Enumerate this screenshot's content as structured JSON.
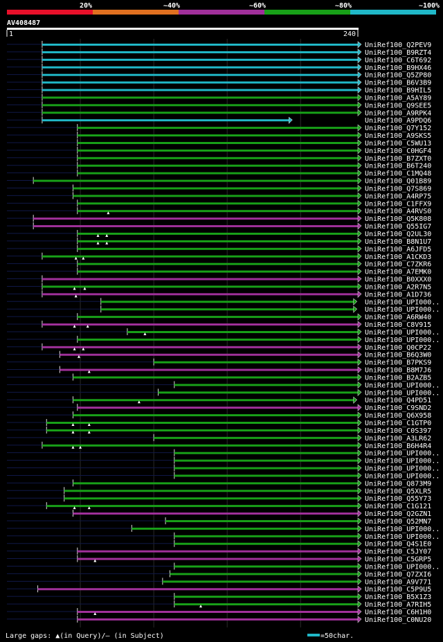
{
  "chart_data": {
    "type": "alignment-overview",
    "query": "AV408487",
    "query_start": "1",
    "query_end": "240",
    "query_length": 240,
    "identity_legend": [
      {
        "label": "20%",
        "color": "#e8102a"
      },
      {
        "label": "~40%",
        "color": "#e07020"
      },
      {
        "label": "~60%",
        "color": "#a0309a"
      },
      {
        "label": "~80%",
        "color": "#18a018"
      },
      {
        "label": "~100%",
        "color": "#20b8c8"
      }
    ],
    "footer": {
      "gaps_label": "Large gaps: ▲(in Query)/– (in Subject)",
      "scale_label": "=50char."
    },
    "hits": [
      {
        "name": "UniRef100_Q2PEV9",
        "start": 25,
        "end": 240,
        "color": "#20b8c8",
        "gaps": []
      },
      {
        "name": "UniRef100_B9RZT4",
        "start": 25,
        "end": 240,
        "color": "#20b8c8",
        "gaps": []
      },
      {
        "name": "UniRef100_C6T692",
        "start": 25,
        "end": 240,
        "color": "#20b8c8",
        "gaps": []
      },
      {
        "name": "UniRef100_B9HX46",
        "start": 25,
        "end": 240,
        "color": "#20b8c8",
        "gaps": []
      },
      {
        "name": "UniRef100_Q5ZP80",
        "start": 25,
        "end": 240,
        "color": "#20b8c8",
        "gaps": []
      },
      {
        "name": "UniRef100_B6V3B9",
        "start": 25,
        "end": 240,
        "color": "#20b8c8",
        "gaps": []
      },
      {
        "name": "UniRef100_B9HIL5",
        "start": 25,
        "end": 240,
        "color": "#20b8c8",
        "gaps": []
      },
      {
        "name": "UniRef100_A5AY89",
        "start": 25,
        "end": 240,
        "color": "#18a018",
        "gaps": []
      },
      {
        "name": "UniRef100_Q9SEE5",
        "start": 25,
        "end": 240,
        "color": "#18a018",
        "gaps": []
      },
      {
        "name": "UniRef100_A9RPK4",
        "start": 25,
        "end": 240,
        "color": "#18a018",
        "gaps": []
      },
      {
        "name": "UniRef100_A9PDQ6",
        "start": 25,
        "end": 193,
        "color": "#20b8c8",
        "gaps": []
      },
      {
        "name": "UniRef100_Q7Y152",
        "start": 49,
        "end": 240,
        "color": "#18a018",
        "gaps": []
      },
      {
        "name": "UniRef100_A9SKS5",
        "start": 49,
        "end": 240,
        "color": "#18a018",
        "gaps": []
      },
      {
        "name": "UniRef100_C5WU13",
        "start": 49,
        "end": 240,
        "color": "#18a018",
        "gaps": []
      },
      {
        "name": "UniRef100_C0HGF4",
        "start": 49,
        "end": 240,
        "color": "#18a018",
        "gaps": []
      },
      {
        "name": "UniRef100_B7ZXT0",
        "start": 49,
        "end": 240,
        "color": "#18a018",
        "gaps": []
      },
      {
        "name": "UniRef100_B6T240",
        "start": 49,
        "end": 240,
        "color": "#18a018",
        "gaps": []
      },
      {
        "name": "UniRef100_C1MQ48",
        "start": 49,
        "end": 240,
        "color": "#18a018",
        "gaps": []
      },
      {
        "name": "UniRef100_Q01B89",
        "start": 19,
        "end": 240,
        "color": "#18a018",
        "gaps": []
      },
      {
        "name": "UniRef100_Q7S869",
        "start": 46,
        "end": 240,
        "color": "#18a018",
        "gaps": []
      },
      {
        "name": "UniRef100_A4RP75",
        "start": 46,
        "end": 240,
        "color": "#18a018",
        "gaps": []
      },
      {
        "name": "UniRef100_C1FFX9",
        "start": 49,
        "end": 240,
        "color": "#18a018",
        "gaps": []
      },
      {
        "name": "UniRef100_A4RVS0",
        "start": 49,
        "end": 240,
        "color": "#18a018",
        "gaps": [
          70
        ]
      },
      {
        "name": "UniRef100_Q5K808",
        "start": 19,
        "end": 240,
        "color": "#a0309a",
        "gaps": []
      },
      {
        "name": "UniRef100_Q55IG7",
        "start": 19,
        "end": 240,
        "color": "#a0309a",
        "gaps": []
      },
      {
        "name": "UniRef100_Q2UL30",
        "start": 49,
        "end": 240,
        "color": "#18a018",
        "gaps": [
          63,
          69
        ]
      },
      {
        "name": "UniRef100_B8N1U7",
        "start": 49,
        "end": 240,
        "color": "#18a018",
        "gaps": [
          63,
          69
        ]
      },
      {
        "name": "UniRef100_A6JFD5",
        "start": 49,
        "end": 240,
        "color": "#18a018",
        "gaps": []
      },
      {
        "name": "UniRef100_A1CKD3",
        "start": 25,
        "end": 240,
        "color": "#18a018",
        "gaps": [
          48,
          53
        ]
      },
      {
        "name": "UniRef100_C7ZKR6",
        "start": 49,
        "end": 240,
        "color": "#18a018",
        "gaps": []
      },
      {
        "name": "UniRef100_A7EMK0",
        "start": 49,
        "end": 240,
        "color": "#18a018",
        "gaps": []
      },
      {
        "name": "UniRef100_B0XXX0",
        "start": 25,
        "end": 240,
        "color": "#a0309a",
        "gaps": []
      },
      {
        "name": "UniRef100_A2R7N5",
        "start": 25,
        "end": 240,
        "color": "#18a018",
        "gaps": [
          47,
          54
        ]
      },
      {
        "name": "UniRef100_A1D736",
        "start": 25,
        "end": 240,
        "color": "#a0309a",
        "gaps": [
          48
        ]
      },
      {
        "name": "UniRef100_UPI000..",
        "start": 65,
        "end": 237,
        "color": "#18a018",
        "gaps": []
      },
      {
        "name": "UniRef100_UPI000..",
        "start": 65,
        "end": 237,
        "color": "#18a018",
        "gaps": []
      },
      {
        "name": "UniRef100_A6RW40",
        "start": 49,
        "end": 240,
        "color": "#18a018",
        "gaps": []
      },
      {
        "name": "UniRef100_C8V915",
        "start": 25,
        "end": 240,
        "color": "#a0309a",
        "gaps": [
          47,
          56
        ]
      },
      {
        "name": "UniRef100_UPI000..",
        "start": 83,
        "end": 240,
        "color": "#18a018",
        "gaps": [
          95
        ]
      },
      {
        "name": "UniRef100_UPI000..",
        "start": 49,
        "end": 240,
        "color": "#18a018",
        "gaps": []
      },
      {
        "name": "UniRef100_Q0CP22",
        "start": 25,
        "end": 240,
        "color": "#a0309a",
        "gaps": [
          47,
          53
        ]
      },
      {
        "name": "UniRef100_B6Q3W0",
        "start": 37,
        "end": 240,
        "color": "#a0309a",
        "gaps": [
          50
        ]
      },
      {
        "name": "UniRef100_B7PKS9",
        "start": 101,
        "end": 240,
        "color": "#18a018",
        "gaps": []
      },
      {
        "name": "UniRef100_B8M7J6",
        "start": 37,
        "end": 240,
        "color": "#a0309a",
        "gaps": [
          57
        ]
      },
      {
        "name": "UniRef100_B2AZB5",
        "start": 46,
        "end": 240,
        "color": "#18a018",
        "gaps": []
      },
      {
        "name": "UniRef100_UPI000..",
        "start": 115,
        "end": 240,
        "color": "#18a018",
        "gaps": []
      },
      {
        "name": "UniRef100_UPI000..",
        "start": 104,
        "end": 240,
        "color": "#18a018",
        "gaps": []
      },
      {
        "name": "UniRef100_Q4PD51",
        "start": 46,
        "end": 237,
        "color": "#18a018",
        "gaps": [
          91
        ]
      },
      {
        "name": "UniRef100_C9SND2",
        "start": 49,
        "end": 240,
        "color": "#a0309a",
        "gaps": []
      },
      {
        "name": "UniRef100_Q6X958",
        "start": 46,
        "end": 240,
        "color": "#18a018",
        "gaps": []
      },
      {
        "name": "UniRef100_C1GTP0",
        "start": 28,
        "end": 240,
        "color": "#18a018",
        "gaps": [
          46,
          57
        ]
      },
      {
        "name": "UniRef100_C0S397",
        "start": 28,
        "end": 240,
        "color": "#18a018",
        "gaps": [
          46,
          57
        ]
      },
      {
        "name": "UniRef100_A3LR62",
        "start": 101,
        "end": 240,
        "color": "#18a018",
        "gaps": []
      },
      {
        "name": "UniRef100_B6H4R4",
        "start": 25,
        "end": 240,
        "color": "#18a018",
        "gaps": [
          46,
          51
        ]
      },
      {
        "name": "UniRef100_UPI000..",
        "start": 115,
        "end": 240,
        "color": "#18a018",
        "gaps": []
      },
      {
        "name": "UniRef100_UPI000..",
        "start": 115,
        "end": 240,
        "color": "#18a018",
        "gaps": []
      },
      {
        "name": "UniRef100_UPI000..",
        "start": 115,
        "end": 240,
        "color": "#18a018",
        "gaps": []
      },
      {
        "name": "UniRef100_UPI000..",
        "start": 115,
        "end": 240,
        "color": "#18a018",
        "gaps": []
      },
      {
        "name": "UniRef100_Q873M9",
        "start": 46,
        "end": 240,
        "color": "#18a018",
        "gaps": []
      },
      {
        "name": "UniRef100_Q5XLR5",
        "start": 40,
        "end": 240,
        "color": "#18a018",
        "gaps": []
      },
      {
        "name": "UniRef100_Q55Y73",
        "start": 40,
        "end": 240,
        "color": "#18a018",
        "gaps": []
      },
      {
        "name": "UniRef100_C1G121",
        "start": 28,
        "end": 240,
        "color": "#18a018",
        "gaps": [
          47,
          57
        ]
      },
      {
        "name": "UniRef100_Q2GZN1",
        "start": 46,
        "end": 240,
        "color": "#a0309a",
        "gaps": []
      },
      {
        "name": "UniRef100_Q52MN7",
        "start": 109,
        "end": 240,
        "color": "#18a018",
        "gaps": []
      },
      {
        "name": "UniRef100_UPI000..",
        "start": 86,
        "end": 240,
        "color": "#18a018",
        "gaps": []
      },
      {
        "name": "UniRef100_UPI000..",
        "start": 115,
        "end": 240,
        "color": "#18a018",
        "gaps": []
      },
      {
        "name": "UniRef100_Q4S1E0",
        "start": 115,
        "end": 240,
        "color": "#18a018",
        "gaps": []
      },
      {
        "name": "UniRef100_C5JY07",
        "start": 49,
        "end": 240,
        "color": "#a0309a",
        "gaps": []
      },
      {
        "name": "UniRef100_C5GRP5",
        "start": 49,
        "end": 240,
        "color": "#a0309a",
        "gaps": [
          61
        ]
      },
      {
        "name": "UniRef100_UPI000..",
        "start": 115,
        "end": 240,
        "color": "#18a018",
        "gaps": []
      },
      {
        "name": "UniRef100_Q7ZXI6",
        "start": 112,
        "end": 240,
        "color": "#18a018",
        "gaps": []
      },
      {
        "name": "UniRef100_A9V771",
        "start": 107,
        "end": 240,
        "color": "#18a018",
        "gaps": []
      },
      {
        "name": "UniRef100_C5P9U5",
        "start": 22,
        "end": 240,
        "color": "#a0309a",
        "gaps": []
      },
      {
        "name": "UniRef100_B5X1Z3",
        "start": 115,
        "end": 240,
        "color": "#18a018",
        "gaps": []
      },
      {
        "name": "UniRef100_A7RIH5",
        "start": 115,
        "end": 240,
        "color": "#18a018",
        "gaps": [
          133
        ]
      },
      {
        "name": "UniRef100_C6H1H0",
        "start": 49,
        "end": 240,
        "color": "#a0309a",
        "gaps": [
          61
        ]
      },
      {
        "name": "UniRef100_C0NU20",
        "start": 49,
        "end": 240,
        "color": "#a0309a",
        "gaps": []
      }
    ]
  }
}
